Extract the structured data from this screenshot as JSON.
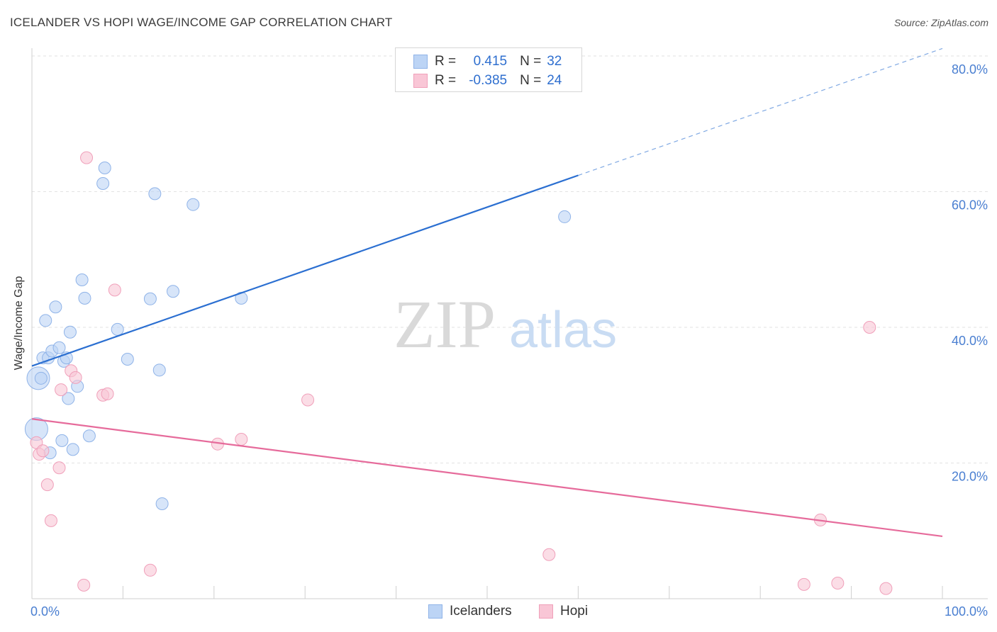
{
  "header": {
    "title": "ICELANDER VS HOPI WAGE/INCOME GAP CORRELATION CHART",
    "source": "Source: ZipAtlas.com"
  },
  "watermark": {
    "zip": "ZIP",
    "atlas": "atlas"
  },
  "stats_legend": {
    "rows": [
      {
        "series": "Icelanders",
        "r_label": "R =",
        "r_value": "0.415",
        "n_label": "N =",
        "n_value": "32"
      },
      {
        "series": "Hopi",
        "r_label": "R =",
        "r_value": "-0.385",
        "n_label": "N =",
        "n_value": "24"
      }
    ]
  },
  "bottom_legend": {
    "items": [
      "Icelanders",
      "Hopi"
    ]
  },
  "chart_data": {
    "type": "scatter",
    "title": "ICELANDER VS HOPI WAGE/INCOME GAP CORRELATION CHART",
    "xlabel": "",
    "ylabel": "Wage/Income Gap",
    "xlim": [
      0,
      100
    ],
    "ylim": [
      0,
      80
    ],
    "x_tick_labels": [
      "0.0%",
      "100.0%"
    ],
    "y_ticks": [
      20,
      40,
      60,
      80
    ],
    "y_tick_labels": [
      "20.0%",
      "40.0%",
      "60.0%",
      "80.0%"
    ],
    "grid": true,
    "colors": {
      "Icelanders": {
        "fill": "#bcd4f5",
        "stroke": "#8fb3e8",
        "line": "#2b6fd1"
      },
      "Hopi": {
        "fill": "#f9c6d6",
        "stroke": "#f0a0ba",
        "line": "#e66b9b"
      }
    },
    "series": [
      {
        "name": "Icelanders",
        "points": [
          [
            0.5,
            25.0
          ],
          [
            0.7,
            32.5
          ],
          [
            1.0,
            32.5
          ],
          [
            1.2,
            35.5
          ],
          [
            1.5,
            41.0
          ],
          [
            1.8,
            35.5
          ],
          [
            2.0,
            21.5
          ],
          [
            2.2,
            36.5
          ],
          [
            2.6,
            43.0
          ],
          [
            3.0,
            37.0
          ],
          [
            3.3,
            23.3
          ],
          [
            3.5,
            35.0
          ],
          [
            3.8,
            35.5
          ],
          [
            4.0,
            29.5
          ],
          [
            4.2,
            39.3
          ],
          [
            4.5,
            22.0
          ],
          [
            5.0,
            31.3
          ],
          [
            5.5,
            47.0
          ],
          [
            5.8,
            44.3
          ],
          [
            6.3,
            24.0
          ],
          [
            7.8,
            61.2
          ],
          [
            8.0,
            63.5
          ],
          [
            9.4,
            39.7
          ],
          [
            10.5,
            35.3
          ],
          [
            13.0,
            44.2
          ],
          [
            13.5,
            59.7
          ],
          [
            14.0,
            33.7
          ],
          [
            14.3,
            14.0
          ],
          [
            15.5,
            45.3
          ],
          [
            17.7,
            58.1
          ],
          [
            23.0,
            44.3
          ],
          [
            58.5,
            56.3
          ]
        ],
        "trend": {
          "x": [
            0,
            60
          ],
          "y": [
            34.3,
            62.4
          ],
          "dashed_to": {
            "x": 100,
            "y": 81.1
          }
        }
      },
      {
        "name": "Hopi",
        "points": [
          [
            0.5,
            23.0
          ],
          [
            0.8,
            21.3
          ],
          [
            1.2,
            21.8
          ],
          [
            1.7,
            16.8
          ],
          [
            2.1,
            11.5
          ],
          [
            3.0,
            19.3
          ],
          [
            3.2,
            30.8
          ],
          [
            4.3,
            33.6
          ],
          [
            4.8,
            32.6
          ],
          [
            5.7,
            2.0
          ],
          [
            6.0,
            65.0
          ],
          [
            7.8,
            30.0
          ],
          [
            8.3,
            30.2
          ],
          [
            9.1,
            45.5
          ],
          [
            13.0,
            4.2
          ],
          [
            20.4,
            22.8
          ],
          [
            23.0,
            23.5
          ],
          [
            30.3,
            29.3
          ],
          [
            56.8,
            6.5
          ],
          [
            84.8,
            2.1
          ],
          [
            86.6,
            11.6
          ],
          [
            88.5,
            2.3
          ],
          [
            92.0,
            40.0
          ],
          [
            93.8,
            1.5
          ]
        ],
        "trend": {
          "x": [
            0,
            100
          ],
          "y": [
            26.5,
            9.2
          ]
        }
      }
    ]
  }
}
